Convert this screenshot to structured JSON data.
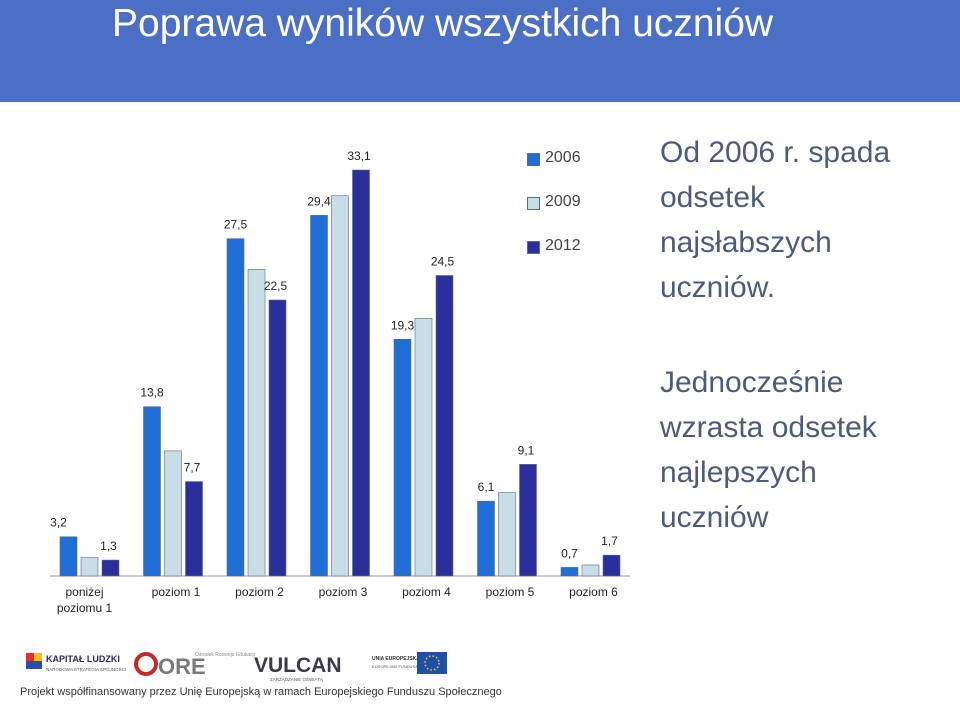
{
  "slide": {
    "title": "Poprawa wyników wszystkich uczniów",
    "title_bar_color": "#4a6fc4"
  },
  "side_text": {
    "block1": [
      "Od 2006 r. spada",
      "odsetek",
      "najsłabszych",
      "uczniów."
    ],
    "block2": [
      "Jednocześnie",
      "wzrasta odsetek",
      "najlepszych",
      "uczniów"
    ]
  },
  "chart_data": {
    "type": "bar",
    "categories": [
      "poniżej poziomu 1",
      "poziom 1",
      "poziom 2",
      "poziom 3",
      "poziom 4",
      "poziom 5",
      "poziom 6"
    ],
    "category_lines": [
      [
        "poniżej",
        "poziomu 1"
      ],
      [
        "poziom 1"
      ],
      [
        "poziom 2"
      ],
      [
        "poziom 3"
      ],
      [
        "poziom 4"
      ],
      [
        "poziom 5"
      ],
      [
        "poziom 6"
      ]
    ],
    "series": [
      {
        "name": "2006",
        "color": "#1f6fd6",
        "values": [
          3.2,
          13.8,
          27.5,
          29.4,
          19.3,
          6.1,
          0.7
        ]
      },
      {
        "name": "2009",
        "color": "#c8dde6",
        "values": [
          1.5,
          10.2,
          25.0,
          31.0,
          21.0,
          6.8,
          0.9
        ]
      },
      {
        "name": "2012",
        "color": "#2b2f9c",
        "values": [
          1.3,
          7.7,
          22.5,
          33.1,
          24.5,
          9.1,
          1.7
        ]
      }
    ],
    "data_labels": [
      {
        "series": 0,
        "index": 0,
        "text": "3,2"
      },
      {
        "series": 2,
        "index": 0,
        "text": "1,3"
      },
      {
        "series": 0,
        "index": 1,
        "text": "13,8"
      },
      {
        "series": 2,
        "index": 1,
        "text": "7,7"
      },
      {
        "series": 0,
        "index": 2,
        "text": "27,5"
      },
      {
        "series": 2,
        "index": 2,
        "text": "22,5"
      },
      {
        "series": 0,
        "index": 3,
        "text": "29,4"
      },
      {
        "series": 2,
        "index": 3,
        "text": "33,1"
      },
      {
        "series": 0,
        "index": 4,
        "text": "19,3"
      },
      {
        "series": 2,
        "index": 4,
        "text": "24,5"
      },
      {
        "series": 0,
        "index": 5,
        "text": "6,1"
      },
      {
        "series": 2,
        "index": 5,
        "text": "9,1"
      },
      {
        "series": 0,
        "index": 6,
        "text": "0,7"
      },
      {
        "series": 2,
        "index": 6,
        "text": "1,7"
      }
    ],
    "ylim": [
      0,
      34
    ],
    "grid": false,
    "legend_position": "top-right"
  },
  "footer": {
    "logos": [
      "KAPITAŁ LUDZKI",
      "NARODOWA STRATEGIA SPÓJNOŚCI",
      "ORE",
      "Ośrodek Rozwoju Edukacji",
      "VULCAN",
      "ZARZĄDZANIE OŚWIATĄ",
      "UNIA EUROPEJSKA",
      "EUROPEJSKI FUNDUSZ SPOŁECZNY"
    ],
    "note": "Projekt współfinansowany przez Unię Europejską w ramach Europejskiego Funduszu Społecznego"
  }
}
